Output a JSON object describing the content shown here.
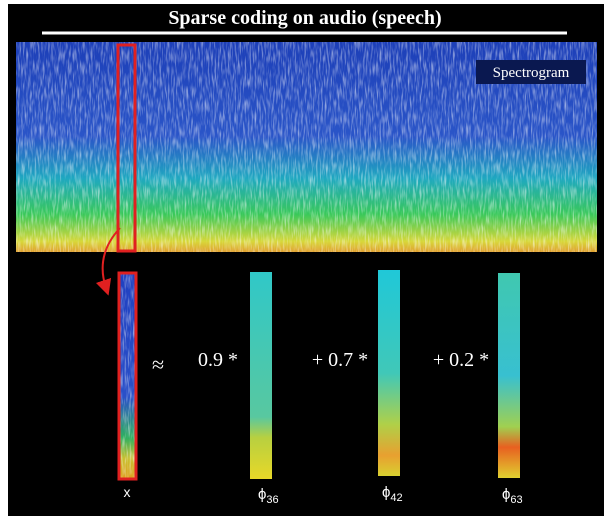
{
  "title": "Sparse coding on audio (speech)",
  "spectrogram_label": "Spectrogram",
  "approx": "≈",
  "coefficients": [
    "0.9 *",
    "+ 0.7 *",
    "+ 0.2 *"
  ],
  "x_label": "x",
  "basis_labels": [
    {
      "symbol": "ϕ",
      "subscript": "36"
    },
    {
      "symbol": "ϕ",
      "subscript": "42"
    },
    {
      "symbol": "ϕ",
      "subscript": "63"
    }
  ]
}
